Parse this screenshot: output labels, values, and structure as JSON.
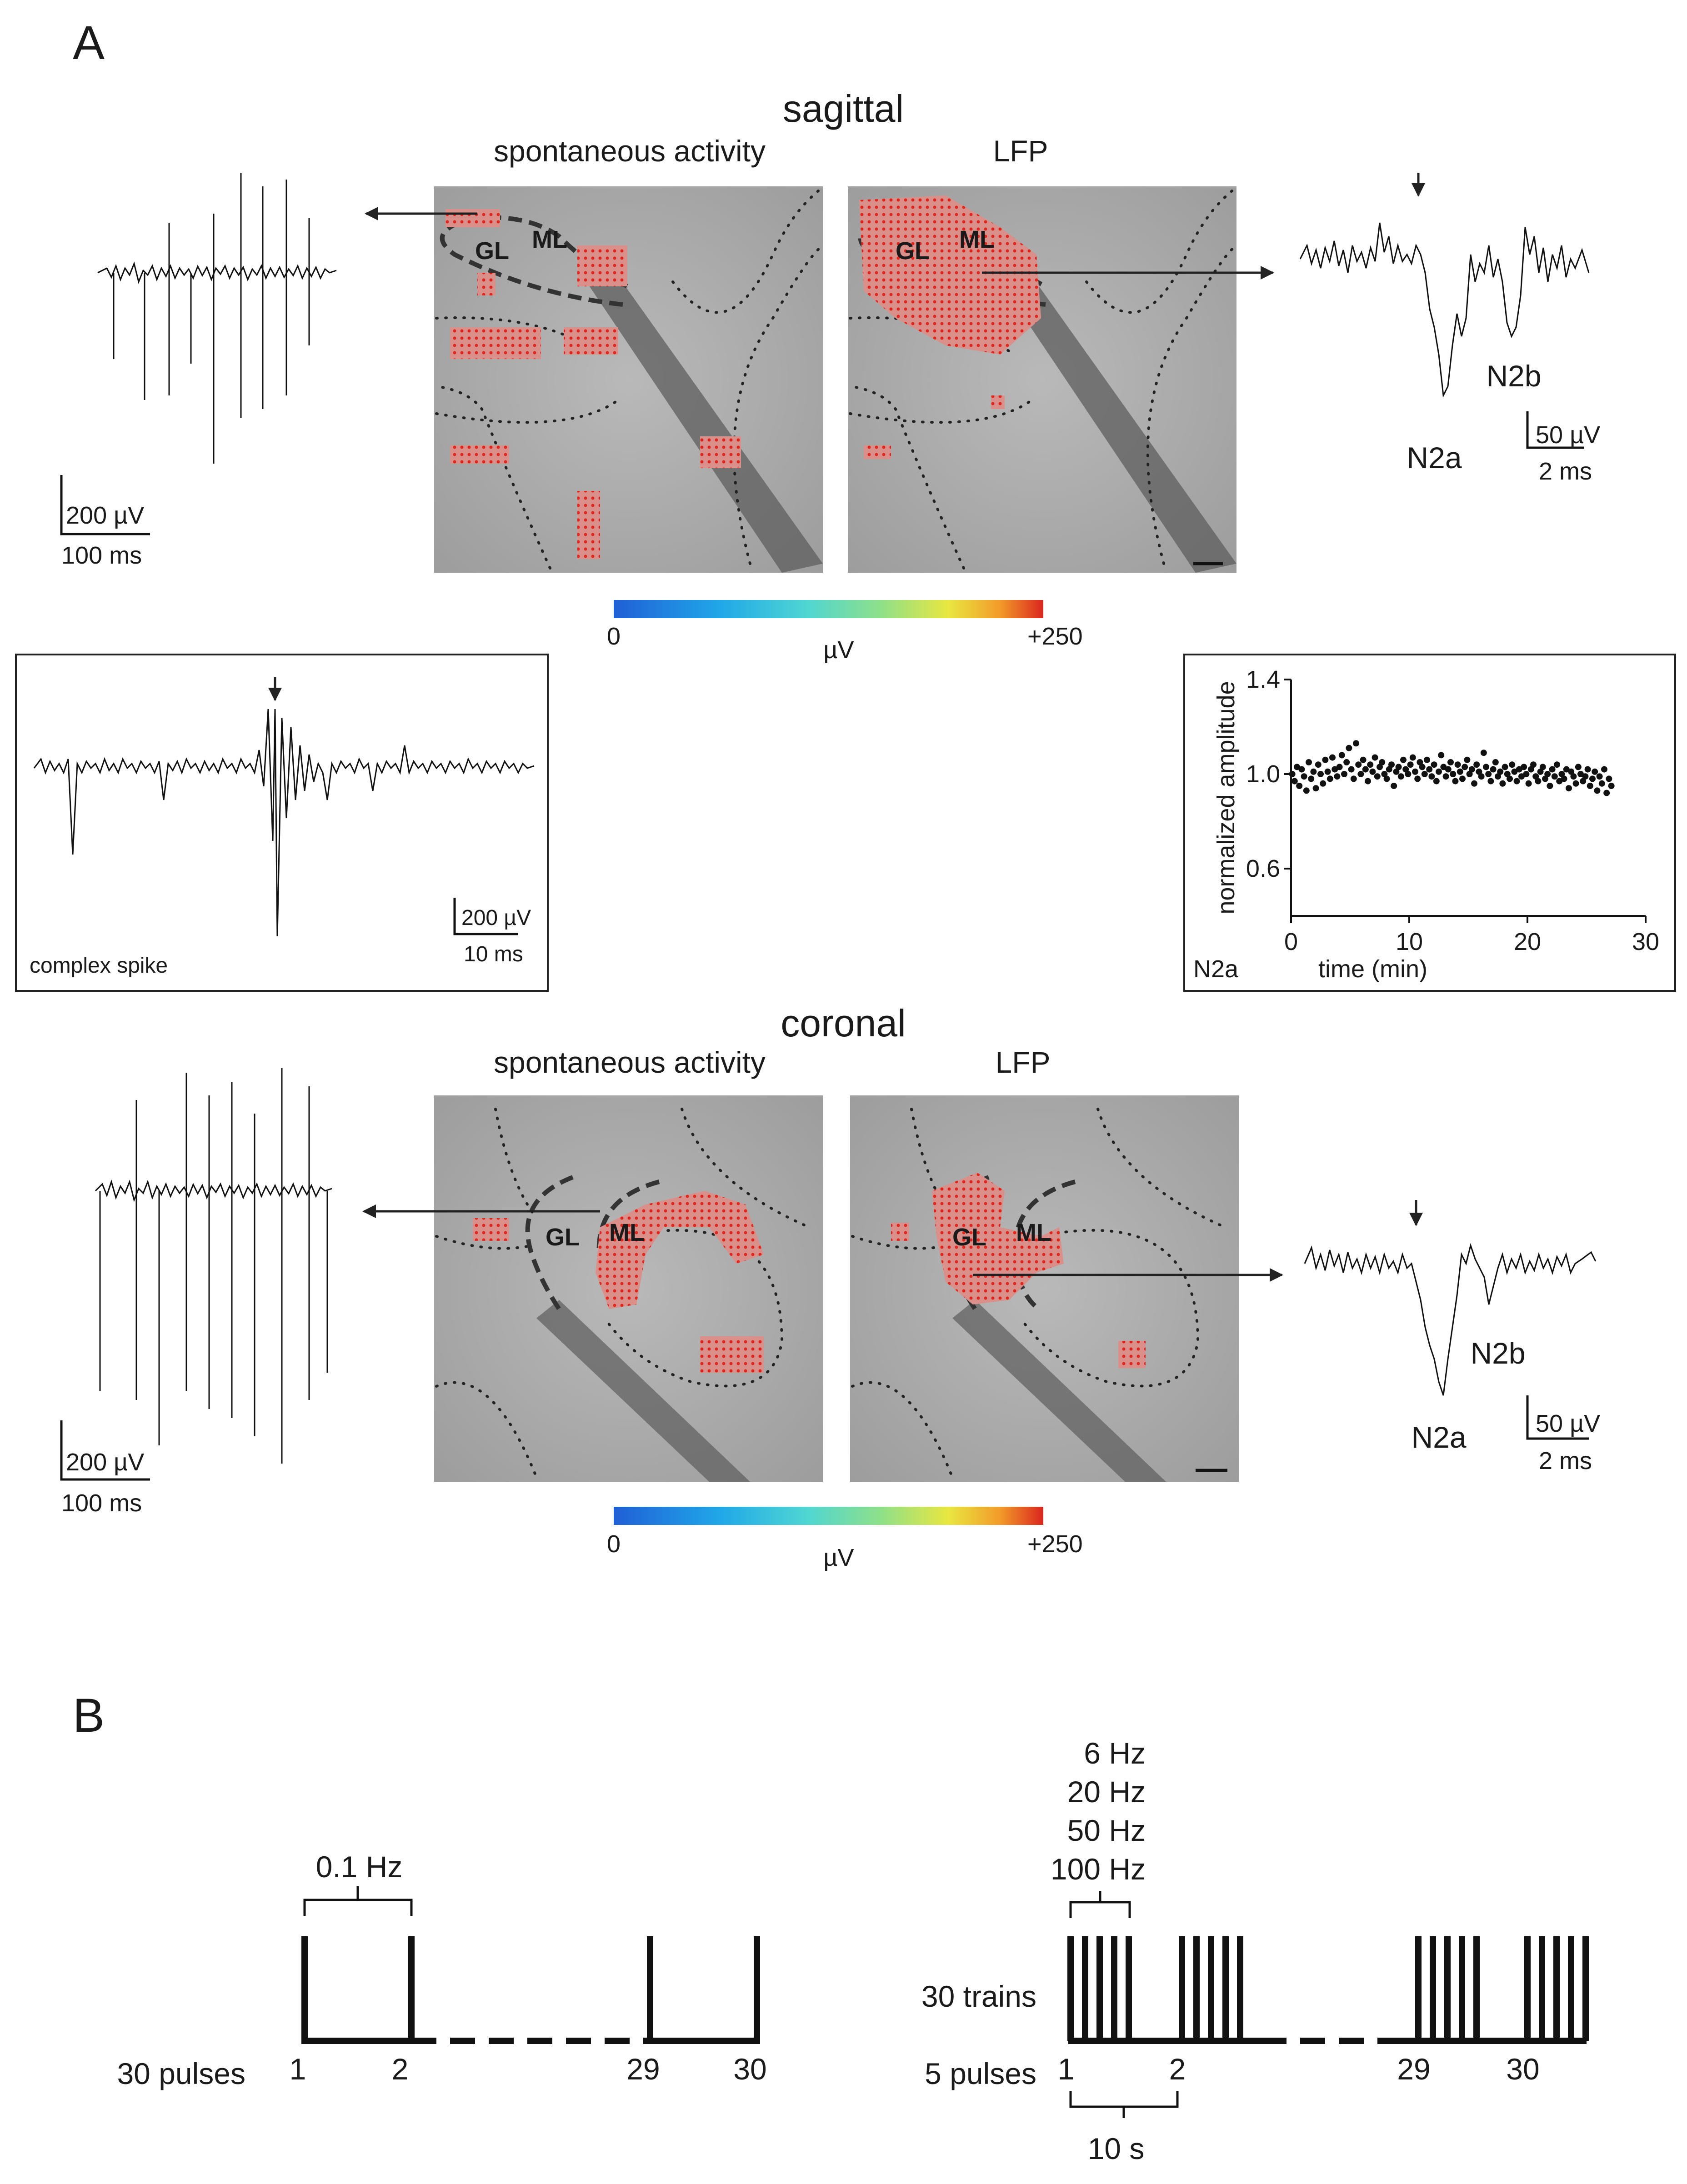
{
  "panelA": {
    "letter": "A",
    "sagittal": {
      "title": "sagittal",
      "spont_label": "spontaneous activity",
      "lfp_label": "LFP",
      "gl": "GL",
      "ml": "ML",
      "left_scale": {
        "v": "200 µV",
        "t": "100 ms"
      },
      "right_scale": {
        "v": "50 µV",
        "t": "2 ms"
      },
      "n2a": "N2a",
      "n2b": "N2b"
    },
    "colorbar": {
      "min": "0",
      "unit": "µV",
      "max": "+250"
    },
    "inset_complex": {
      "label": "complex spike",
      "v": "200 µV",
      "t": "10 ms"
    },
    "inset_stability": {
      "label": "N2a"
    },
    "coronal": {
      "title": "coronal",
      "spont_label": "spontaneous activity",
      "lfp_label": "LFP",
      "gl": "GL",
      "ml": "ML",
      "left_scale": {
        "v": "200 µV",
        "t": "100 ms"
      },
      "right_scale": {
        "v": "50 µV",
        "t": "2 ms"
      },
      "n2a": "N2a",
      "n2b": "N2b"
    },
    "colorbar2": {
      "min": "0",
      "unit": "µV",
      "max": "+250"
    }
  },
  "panelB": {
    "letter": "B",
    "left": {
      "freq": "0.1 Hz",
      "label": "30 pulses",
      "ticks": [
        "1",
        "2",
        "29",
        "30"
      ]
    },
    "right": {
      "freqs": [
        "6  Hz",
        "20  Hz",
        "50  Hz",
        "100  Hz"
      ],
      "trains": "30 trains",
      "pulses": "5 pulses",
      "ticks": [
        "1",
        "2",
        "29",
        "30"
      ],
      "interval": "10 s"
    }
  },
  "chart_data": {
    "type": "scatter",
    "title": "",
    "xlabel": "time (min)",
    "ylabel": "normalized amplitude",
    "xlim": [
      0,
      30
    ],
    "ylim": [
      0.4,
      1.4
    ],
    "xticks": [
      "0",
      "10",
      "20",
      "30"
    ],
    "yticks": [
      "0.6",
      "1.0",
      "1.4"
    ],
    "x": [
      0.1,
      0.3,
      0.5,
      0.7,
      0.9,
      1.1,
      1.3,
      1.5,
      1.7,
      1.9,
      2.1,
      2.3,
      2.5,
      2.7,
      2.9,
      3.1,
      3.3,
      3.5,
      3.7,
      3.9,
      4.1,
      4.3,
      4.5,
      4.7,
      4.9,
      5.1,
      5.3,
      5.5,
      5.7,
      5.9,
      6.1,
      6.3,
      6.5,
      6.7,
      6.9,
      7.1,
      7.3,
      7.5,
      7.7,
      7.9,
      8.1,
      8.3,
      8.5,
      8.7,
      8.9,
      9.1,
      9.3,
      9.5,
      9.7,
      9.9,
      10.1,
      10.3,
      10.5,
      10.7,
      10.9,
      11.1,
      11.3,
      11.5,
      11.7,
      11.9,
      12.1,
      12.3,
      12.5,
      12.7,
      12.9,
      13.1,
      13.3,
      13.5,
      13.7,
      13.9,
      14.1,
      14.3,
      14.5,
      14.7,
      14.9,
      15.1,
      15.3,
      15.5,
      15.7,
      15.9,
      16.1,
      16.3,
      16.5,
      16.7,
      16.9,
      17.1,
      17.3,
      17.5,
      17.7,
      17.9,
      18.1,
      18.3,
      18.5,
      18.7,
      18.9,
      19.1,
      19.3,
      19.5,
      19.7,
      19.9,
      20.1,
      20.3,
      20.5,
      20.7,
      20.9,
      21.1,
      21.3,
      21.5,
      21.7,
      21.9,
      22.1,
      22.3,
      22.5,
      22.7,
      22.9,
      23.1,
      23.3,
      23.5,
      23.7,
      23.9,
      24.1,
      24.3,
      24.5,
      24.7,
      24.9,
      25.1,
      25.3,
      25.5,
      25.7,
      25.9,
      26.1,
      26.3,
      26.5,
      26.7,
      26.9,
      27.1
    ],
    "y": [
      1.0,
      0.97,
      1.03,
      0.95,
      1.02,
      0.99,
      0.93,
      1.05,
      0.98,
      1.01,
      0.94,
      1.04,
      1.0,
      0.96,
      1.06,
      1.01,
      0.98,
      1.07,
      1.02,
      0.99,
      1.03,
      1.08,
      1.0,
      1.05,
      1.11,
      1.02,
      0.98,
      1.13,
      1.04,
      1.0,
      1.06,
      1.02,
      0.97,
      1.04,
      1.01,
      1.07,
      0.99,
      1.03,
      1.05,
      1.0,
      0.98,
      1.02,
      1.04,
      0.95,
      1.01,
      1.03,
      0.99,
      1.06,
      1.02,
      1.0,
      1.04,
      1.07,
      1.01,
      0.98,
      1.05,
      1.03,
      1.0,
      1.06,
      1.02,
      0.99,
      1.04,
      0.97,
      1.01,
      1.08,
      1.03,
      0.99,
      1.02,
      1.05,
      1.0,
      0.97,
      1.04,
      1.01,
      0.98,
      1.03,
      1.06,
      1.0,
      1.02,
      0.96,
      1.04,
      1.01,
      0.99,
      1.09,
      1.03,
      1.0,
      0.97,
      1.02,
      1.05,
      0.99,
      1.01,
      0.96,
      1.03,
      1.0,
      0.98,
      1.04,
      1.01,
      0.97,
      1.02,
      0.99,
      1.03,
      1.0,
      0.96,
      1.02,
      1.04,
      0.99,
      0.97,
      1.01,
      1.03,
      0.98,
      1.0,
      0.95,
      1.02,
      0.99,
      1.04,
      0.97,
      1.0,
      0.98,
      1.02,
      0.94,
      1.01,
      0.99,
      0.96,
      1.03,
      1.0,
      0.97,
      0.99,
      1.02,
      0.95,
      0.98,
      1.01,
      0.93,
      0.99,
      0.96,
      1.02,
      0.92,
      0.98,
      0.95
    ]
  }
}
